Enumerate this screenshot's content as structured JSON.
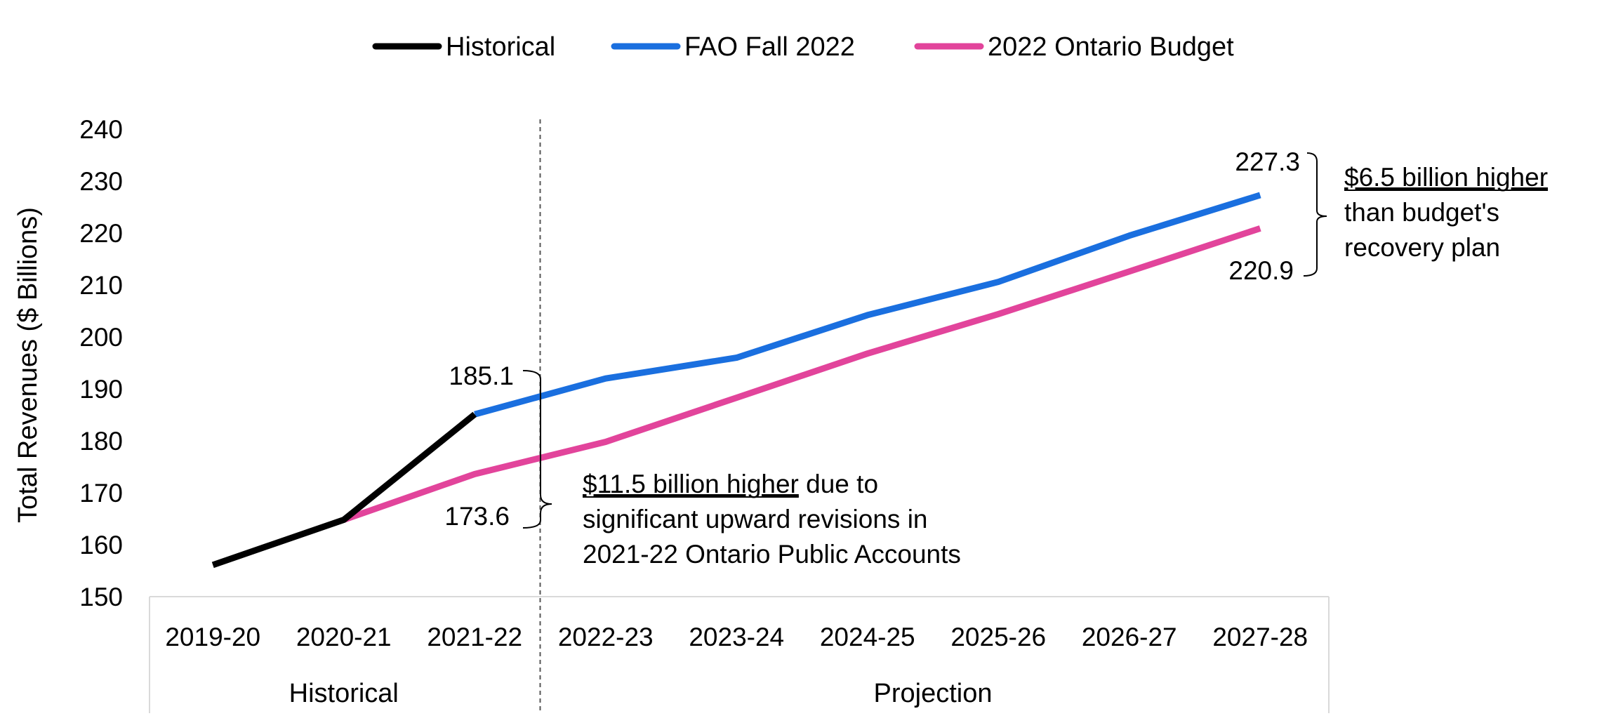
{
  "chart_data": {
    "type": "line",
    "title": "",
    "xlabel": "",
    "ylabel": "Total Revenues ($ Billions)",
    "ylim": [
      150,
      240
    ],
    "ytick_step": 10,
    "grid": false,
    "legend_position": "top-center",
    "categories": [
      "2019-20",
      "2020-21",
      "2021-22",
      "2022-23",
      "2023-24",
      "2024-25",
      "2025-26",
      "2026-27",
      "2027-28"
    ],
    "category_groups": [
      {
        "label": "Historical",
        "from": "2019-20",
        "to": "2021-22"
      },
      {
        "label": "Projection",
        "from": "2022-23",
        "to": "2027-28"
      }
    ],
    "divider_after": "2021-22",
    "series": [
      {
        "name": "Historical",
        "color": "#000000",
        "values": [
          156.1,
          164.8,
          185.1,
          null,
          null,
          null,
          null,
          null,
          null
        ]
      },
      {
        "name": "FAO Fall 2022",
        "color": "#1a6fdf",
        "values": [
          null,
          null,
          185.1,
          192.0,
          196.0,
          204.2,
          210.6,
          219.5,
          227.3
        ]
      },
      {
        "name": "2022 Ontario Budget",
        "color": "#e2449b",
        "values": [
          null,
          164.8,
          173.6,
          179.8,
          188.3,
          196.8,
          204.4,
          212.6,
          220.9
        ]
      }
    ],
    "data_labels": [
      {
        "text": "185.1",
        "category": "2021-22",
        "series": "FAO Fall 2022"
      },
      {
        "text": "173.6",
        "category": "2021-22",
        "series": "2022 Ontario Budget"
      },
      {
        "text": "227.3",
        "category": "2027-28",
        "series": "FAO Fall 2022"
      },
      {
        "text": "220.9",
        "category": "2027-28",
        "series": "2022 Ontario Budget"
      }
    ],
    "annotations": [
      {
        "underlined": "$11.5 billion higher",
        "rest": " due to",
        "lines": [
          "significant upward revisions in",
          "2021-22 Ontario Public Accounts"
        ]
      },
      {
        "underlined": "$6.5 billion higher",
        "rest": "",
        "lines": [
          "than budget's",
          "recovery plan"
        ]
      }
    ]
  }
}
